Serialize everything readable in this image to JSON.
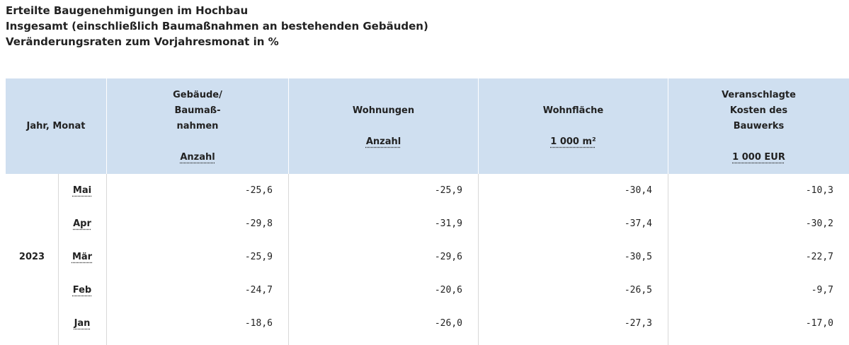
{
  "title": [
    "Erteilte Baugenehmigungen im Hochbau",
    "Insgesamt (einschließlich Baumaßnahmen an bestehenden Gebäuden)",
    "Veränderungsraten zum Vorjahresmonat in %"
  ],
  "table": {
    "header": [
      {
        "label": [
          "Jahr, Monat"
        ]
      },
      {
        "label": [
          "Gebäude/",
          "Baumaß-",
          "nahmen"
        ],
        "unit": "Anzahl"
      },
      {
        "label": [
          "Wohnungen"
        ],
        "unit": "Anzahl"
      },
      {
        "label": [
          "Wohnfläche"
        ],
        "unit": "1 000 m²"
      },
      {
        "label": [
          "Veranschlagte",
          "Kosten des",
          "Bauwerks"
        ],
        "unit": "1 000 EUR"
      }
    ],
    "year": "2023",
    "rows": [
      {
        "month": "Mai",
        "values": [
          "-25,6",
          "-25,9",
          "-30,4",
          "-10,3"
        ]
      },
      {
        "month": "Apr",
        "values": [
          "-29,8",
          "-31,9",
          "-37,4",
          "-30,2"
        ]
      },
      {
        "month": "Mär",
        "values": [
          "-25,9",
          "-29,6",
          "-30,5",
          "-22,7"
        ]
      },
      {
        "month": "Feb",
        "values": [
          "-24,7",
          "-20,6",
          "-26,5",
          "-9,7"
        ]
      },
      {
        "month": "Jan",
        "values": [
          "-18,6",
          "-26,0",
          "-27,3",
          "-17,0"
        ]
      }
    ]
  }
}
